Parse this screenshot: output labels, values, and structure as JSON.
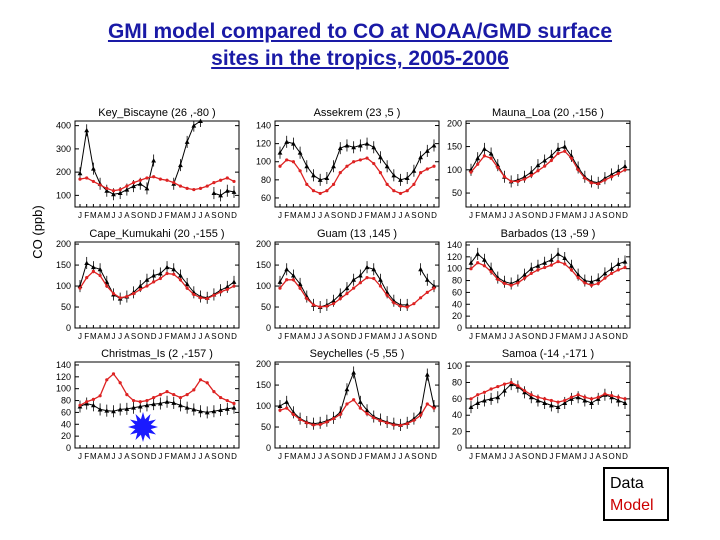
{
  "title_line1": "GMI model compared to CO at NOAA/GMD surface",
  "title_line2": "sites in the tropics, 2005-2006",
  "ylabel": "CO (ppb)",
  "legend": {
    "data_label": "Data",
    "model_label": "Model"
  },
  "colors": {
    "data": "#000000",
    "model": "#dd2222",
    "title": "#1a1aa6",
    "marker": "#1a1aff"
  },
  "month_axis": "JFMAMJJASONDJFMAMJJASOND",
  "chart_data": [
    {
      "type": "line",
      "title": "Key_Biscayne (26 ,-80 )",
      "ylim": [
        50,
        420
      ],
      "yticks": [
        100,
        200,
        300,
        400
      ],
      "series": [
        {
          "name": "Data",
          "values": [
            195,
            380,
            215,
            150,
            120,
            105,
            110,
            125,
            140,
            150,
            130,
            250,
            null,
            null,
            150,
            230,
            330,
            400,
            420,
            null,
            110,
            100,
            120,
            115
          ]
        },
        {
          "name": "Model",
          "values": [
            170,
            175,
            160,
            145,
            130,
            120,
            125,
            140,
            155,
            165,
            175,
            180,
            170,
            165,
            155,
            140,
            130,
            125,
            130,
            140,
            155,
            165,
            175,
            160
          ]
        }
      ]
    },
    {
      "type": "line",
      "title": "Assekrem (23 ,5 )",
      "ylim": [
        50,
        145
      ],
      "yticks": [
        60,
        80,
        100,
        120,
        140
      ],
      "series": [
        {
          "name": "Data",
          "values": [
            110,
            122,
            120,
            110,
            95,
            85,
            80,
            82,
            95,
            115,
            118,
            116,
            118,
            120,
            116,
            105,
            95,
            85,
            80,
            82,
            90,
            105,
            112,
            118
          ]
        },
        {
          "name": "Model",
          "values": [
            95,
            102,
            100,
            90,
            75,
            68,
            65,
            68,
            75,
            88,
            95,
            100,
            102,
            104,
            98,
            88,
            75,
            68,
            65,
            68,
            75,
            88,
            92,
            95
          ]
        }
      ]
    },
    {
      "type": "line",
      "title": "Mauna_Loa (20 ,-156 )",
      "ylim": [
        20,
        205
      ],
      "yticks": [
        50,
        100,
        150,
        200
      ],
      "series": [
        {
          "name": "Data",
          "values": [
            100,
            125,
            145,
            135,
            110,
            85,
            75,
            78,
            85,
            95,
            110,
            120,
            130,
            145,
            150,
            130,
            105,
            85,
            75,
            72,
            82,
            90,
            98,
            108
          ]
        },
        {
          "name": "Model",
          "values": [
            95,
            112,
            130,
            125,
            105,
            85,
            75,
            75,
            80,
            88,
            98,
            108,
            120,
            135,
            140,
            125,
            100,
            82,
            72,
            70,
            78,
            85,
            92,
            100
          ]
        }
      ]
    },
    {
      "type": "line",
      "title": "Cape_Kumukahi (20 ,-155 )",
      "ylim": [
        0,
        205
      ],
      "yticks": [
        0,
        50,
        100,
        150,
        200
      ],
      "series": [
        {
          "name": "Data",
          "values": [
            100,
            155,
            145,
            140,
            110,
            80,
            70,
            75,
            85,
            100,
            115,
            125,
            130,
            145,
            140,
            125,
            105,
            85,
            75,
            72,
            80,
            90,
            98,
            110
          ]
        },
        {
          "name": "Model",
          "values": [
            95,
            120,
            135,
            125,
            100,
            82,
            72,
            75,
            82,
            92,
            100,
            110,
            118,
            130,
            128,
            115,
            95,
            80,
            72,
            70,
            78,
            86,
            92,
            100
          ]
        }
      ]
    },
    {
      "type": "line",
      "title": "Guam (13 ,145 )",
      "ylim": [
        0,
        205
      ],
      "yticks": [
        0,
        50,
        100,
        150,
        200
      ],
      "series": [
        {
          "name": "Data",
          "values": [
            110,
            140,
            125,
            105,
            75,
            55,
            50,
            55,
            65,
            80,
            95,
            115,
            125,
            145,
            140,
            115,
            85,
            65,
            55,
            55,
            null,
            140,
            115,
            100
          ]
        },
        {
          "name": "Model",
          "values": [
            95,
            115,
            115,
            95,
            70,
            55,
            50,
            52,
            58,
            70,
            82,
            95,
            108,
            120,
            118,
            100,
            78,
            60,
            52,
            50,
            58,
            72,
            85,
            95
          ]
        }
      ]
    },
    {
      "type": "line",
      "title": "Barbados (13 ,-59 )",
      "ylim": [
        0,
        145
      ],
      "yticks": [
        0,
        20,
        40,
        60,
        80,
        100,
        120,
        140
      ],
      "series": [
        {
          "name": "Data",
          "values": [
            110,
            125,
            115,
            100,
            85,
            78,
            75,
            80,
            90,
            100,
            105,
            110,
            115,
            125,
            118,
            105,
            90,
            80,
            78,
            82,
            92,
            100,
            108,
            112
          ]
        },
        {
          "name": "Model",
          "values": [
            100,
            110,
            105,
            95,
            82,
            75,
            72,
            76,
            84,
            92,
            98,
            102,
            106,
            112,
            108,
            98,
            85,
            76,
            72,
            75,
            84,
            92,
            98,
            102
          ]
        }
      ]
    },
    {
      "type": "line",
      "title": "Christmas_Is (2 ,-157 )",
      "ylim": [
        0,
        145
      ],
      "yticks": [
        0,
        20,
        40,
        60,
        80,
        100,
        120,
        140
      ],
      "series": [
        {
          "name": "Data",
          "values": [
            70,
            75,
            72,
            65,
            63,
            62,
            65,
            66,
            68,
            70,
            72,
            74,
            75,
            78,
            76,
            72,
            68,
            65,
            62,
            60,
            62,
            64,
            66,
            68
          ]
        },
        {
          "name": "Model",
          "values": [
            72,
            78,
            82,
            88,
            115,
            125,
            110,
            90,
            80,
            78,
            80,
            85,
            90,
            95,
            90,
            85,
            90,
            98,
            115,
            110,
            95,
            85,
            80,
            75
          ]
        }
      ]
    },
    {
      "type": "line",
      "title": "Seychelles (-5 ,55 )",
      "ylim": [
        0,
        205
      ],
      "yticks": [
        0,
        50,
        100,
        150,
        200
      ],
      "series": [
        {
          "name": "Data",
          "values": [
            100,
            110,
            85,
            70,
            62,
            58,
            60,
            65,
            72,
            85,
            140,
            180,
            110,
            90,
            75,
            68,
            62,
            58,
            55,
            60,
            70,
            85,
            175,
            100
          ]
        },
        {
          "name": "Model",
          "values": [
            90,
            95,
            80,
            68,
            60,
            55,
            56,
            62,
            70,
            80,
            105,
            115,
            95,
            82,
            72,
            65,
            60,
            55,
            54,
            58,
            66,
            78,
            105,
            95
          ]
        }
      ]
    },
    {
      "type": "line",
      "title": "Samoa (-14 ,-171 )",
      "ylim": [
        0,
        105
      ],
      "yticks": [
        0,
        20,
        40,
        60,
        80,
        100
      ],
      "series": [
        {
          "name": "Data",
          "values": [
            50,
            55,
            58,
            60,
            62,
            70,
            78,
            75,
            68,
            62,
            58,
            55,
            52,
            50,
            55,
            60,
            62,
            58,
            55,
            60,
            65,
            62,
            58,
            55
          ]
        },
        {
          "name": "Model",
          "values": [
            60,
            65,
            68,
            72,
            75,
            78,
            80,
            76,
            70,
            65,
            62,
            60,
            58,
            56,
            58,
            62,
            65,
            62,
            60,
            62,
            66,
            64,
            62,
            60
          ]
        }
      ]
    }
  ]
}
